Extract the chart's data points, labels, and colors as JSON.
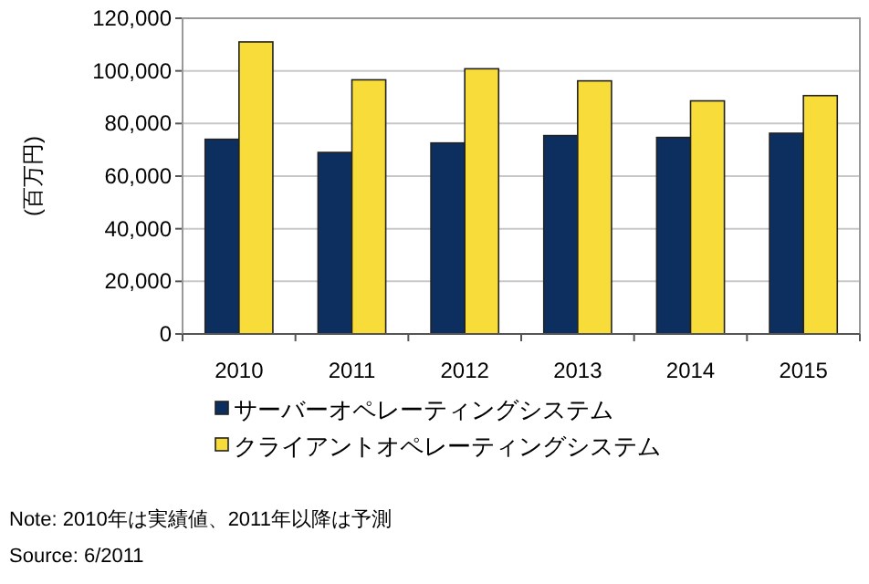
{
  "chart_data": {
    "type": "bar",
    "ylabel": "(百万円)",
    "categories": [
      "2010",
      "2011",
      "2012",
      "2013",
      "2014",
      "2015"
    ],
    "series": [
      {
        "name": "サーバーオペレーティングシステム",
        "color": "#0d2f60",
        "values": [
          74000,
          69000,
          72600,
          75400,
          74700,
          76300
        ]
      },
      {
        "name": "クライアントオペレーティングシステム",
        "color": "#f7dc3a",
        "values": [
          111000,
          96600,
          100800,
          96200,
          88600,
          90600
        ]
      }
    ],
    "ylim": [
      0,
      120000
    ],
    "yticks": [
      {
        "value": 0,
        "label": "0"
      },
      {
        "value": 20000,
        "label": "20,000"
      },
      {
        "value": 40000,
        "label": "40,000"
      },
      {
        "value": 60000,
        "label": "60,000"
      },
      {
        "value": 80000,
        "label": "80,000"
      },
      {
        "value": 100000,
        "label": "100,000"
      },
      {
        "value": 120000,
        "label": "120,000"
      }
    ],
    "grid": "y",
    "legend": "bottom",
    "annotations": [
      "Note: 2010年は実績値、2011年以降は予測",
      "Source: 6/2011"
    ]
  }
}
